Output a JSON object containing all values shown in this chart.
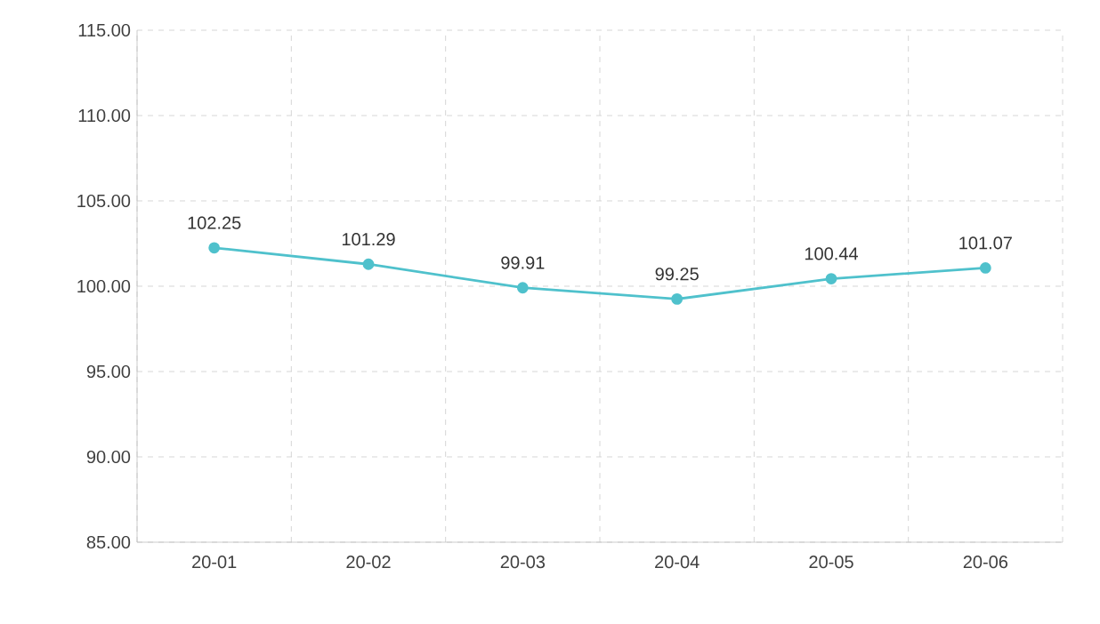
{
  "chart_data": {
    "type": "line",
    "categories": [
      "20-01",
      "20-02",
      "20-03",
      "20-04",
      "20-05",
      "20-06"
    ],
    "series": [
      {
        "color": "#4fc1cc",
        "values": [
          102.25,
          101.29,
          99.91,
          99.25,
          100.44,
          101.07
        ]
      }
    ],
    "ylim": [
      85,
      115
    ],
    "yticks": [
      {
        "value": 85,
        "label": "85.00"
      },
      {
        "value": 90,
        "label": "90.00"
      },
      {
        "value": 95,
        "label": "95.00"
      },
      {
        "value": 100,
        "label": "100.00"
      },
      {
        "value": 105,
        "label": "105.00"
      },
      {
        "value": 110,
        "label": "110.00"
      },
      {
        "value": 115,
        "label": "115.00"
      }
    ],
    "grid": true,
    "marker": "circle",
    "line_style": "solid",
    "data_labels": true
  }
}
